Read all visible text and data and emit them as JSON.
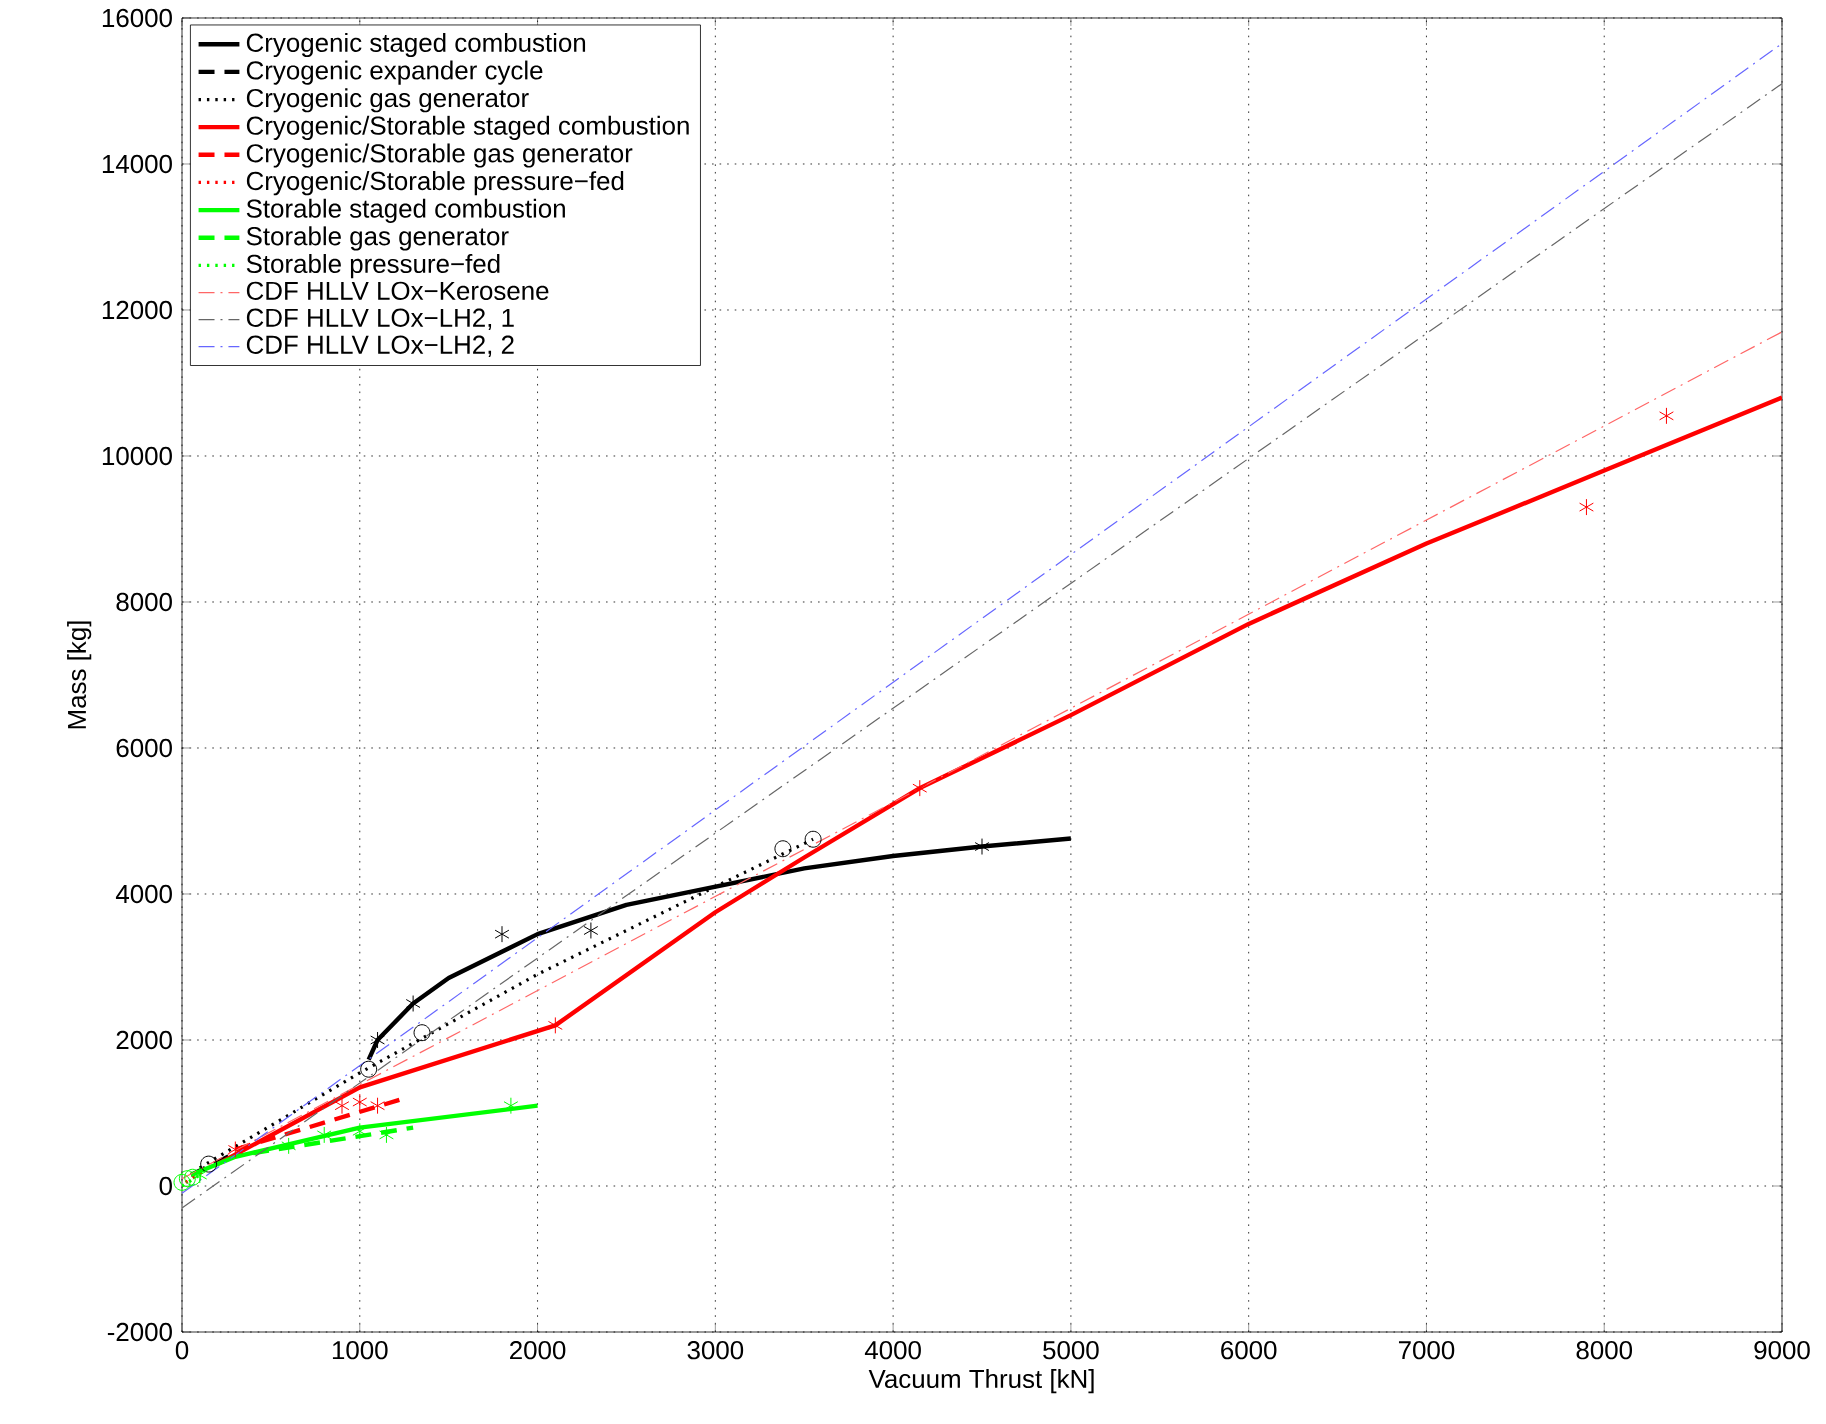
{
  "chart_data": {
    "type": "line",
    "xlabel": "Vacuum Thrust [kN]",
    "ylabel": "Mass [kg]",
    "xlim": [
      0,
      9000
    ],
    "ylim": [
      -2000,
      16000
    ],
    "xticks": [
      0,
      1000,
      2000,
      3000,
      4000,
      5000,
      6000,
      7000,
      8000,
      9000
    ],
    "yticks": [
      -2000,
      0,
      2000,
      4000,
      6000,
      8000,
      10000,
      12000,
      14000,
      16000
    ],
    "grid": true,
    "legend": "top left",
    "series": [
      {
        "name": "Cryogenic staged combustion",
        "color": "#000000",
        "line_style": "solid",
        "x": [
          1050,
          1100,
          1300,
          1500,
          2000,
          2500,
          3000,
          3500,
          4000,
          4500,
          5000
        ],
        "values": [
          1730,
          2000,
          2500,
          2850,
          3450,
          3850,
          4100,
          4350,
          4520,
          4650,
          4760
        ]
      },
      {
        "name": "Cryogenic expander cycle",
        "color": "#000000",
        "line_style": "dashed",
        "x": [
          50,
          300
        ],
        "values": [
          150,
          450
        ]
      },
      {
        "name": "Cryogenic gas generator",
        "color": "#000000",
        "line_style": "dotted",
        "x": [
          100,
          1000,
          2000,
          3000,
          3550
        ],
        "values": [
          250,
          1550,
          2900,
          4100,
          4750
        ]
      },
      {
        "name": "Cryogenic/Storable staged combustion",
        "color": "#ff0000",
        "line_style": "solid",
        "x": [
          200,
          1000,
          2100,
          3000,
          3500,
          4150,
          5000,
          6000,
          7000,
          8000,
          9000
        ],
        "values": [
          300,
          1350,
          2200,
          3750,
          4500,
          5450,
          6450,
          7700,
          8800,
          9800,
          10800
        ]
      },
      {
        "name": "Cryogenic/Storable gas generator",
        "color": "#ff0000",
        "line_style": "dashed",
        "x": [
          300,
          1250
        ],
        "values": [
          500,
          1200
        ]
      },
      {
        "name": "Cryogenic/Storable pressure−fed",
        "color": "#ff0000",
        "line_style": "dotted",
        "x": [
          20,
          150
        ],
        "values": [
          50,
          250
        ]
      },
      {
        "name": "Storable staged combustion",
        "color": "#00ff00",
        "line_style": "solid",
        "x": [
          50,
          300,
          1000,
          2000
        ],
        "values": [
          150,
          400,
          800,
          1100
        ]
      },
      {
        "name": "Storable gas generator",
        "color": "#00ff00",
        "line_style": "dashed",
        "x": [
          400,
          1300
        ],
        "values": [
          450,
          800
        ]
      },
      {
        "name": "Storable pressure−fed",
        "color": "#00ff00",
        "line_style": "dotted",
        "x": [
          0,
          100
        ],
        "values": [
          0,
          150
        ]
      },
      {
        "name": "CDF HLLV LOx−Kerosene",
        "color": "#ff6666",
        "line_style": "dashdot",
        "x": [
          0,
          9000
        ],
        "values": [
          100,
          11700
        ]
      },
      {
        "name": "CDF HLLV LOx−LH2, 1",
        "color": "#666666",
        "line_style": "dashdot",
        "x": [
          0,
          9000
        ],
        "values": [
          -300,
          15100
        ]
      },
      {
        "name": "CDF HLLV LOx−LH2, 2",
        "color": "#6666ff",
        "line_style": "dashdot",
        "x": [
          0,
          9000
        ],
        "values": [
          -100,
          15650
        ]
      },
      {
        "type": "scatter",
        "marker": "cross",
        "color": "#000000",
        "x": [
          1100,
          1300,
          1800,
          2300,
          4500
        ],
        "values": [
          2000,
          2500,
          3450,
          3500,
          4650
        ]
      },
      {
        "type": "scatter",
        "marker": "circle",
        "color": "#000000",
        "x": [
          150,
          1050,
          1350,
          3380,
          3550
        ],
        "values": [
          300,
          1600,
          2100,
          4620,
          4750
        ]
      },
      {
        "type": "scatter",
        "marker": "cross",
        "color": "#ff0000",
        "x": [
          300,
          900,
          2100,
          4150,
          7900,
          8350
        ],
        "values": [
          500,
          1100,
          2200,
          5450,
          9300,
          10550
        ]
      },
      {
        "type": "scatter",
        "marker": "cross",
        "color": "#ff0000",
        "x": [
          1000,
          1100
        ],
        "values": [
          1150,
          1100
        ]
      },
      {
        "type": "scatter",
        "marker": "cross",
        "color": "#00ff00",
        "x": [
          100,
          600,
          1000,
          1850
        ],
        "values": [
          150,
          550,
          750,
          1100
        ]
      },
      {
        "type": "scatter",
        "marker": "cross",
        "color": "#00ff00",
        "x": [
          800,
          1150
        ],
        "values": [
          700,
          700
        ]
      },
      {
        "type": "scatter",
        "marker": "circle",
        "color": "#00ff00",
        "x": [
          0,
          30,
          60
        ],
        "values": [
          50,
          100,
          120
        ]
      }
    ]
  }
}
